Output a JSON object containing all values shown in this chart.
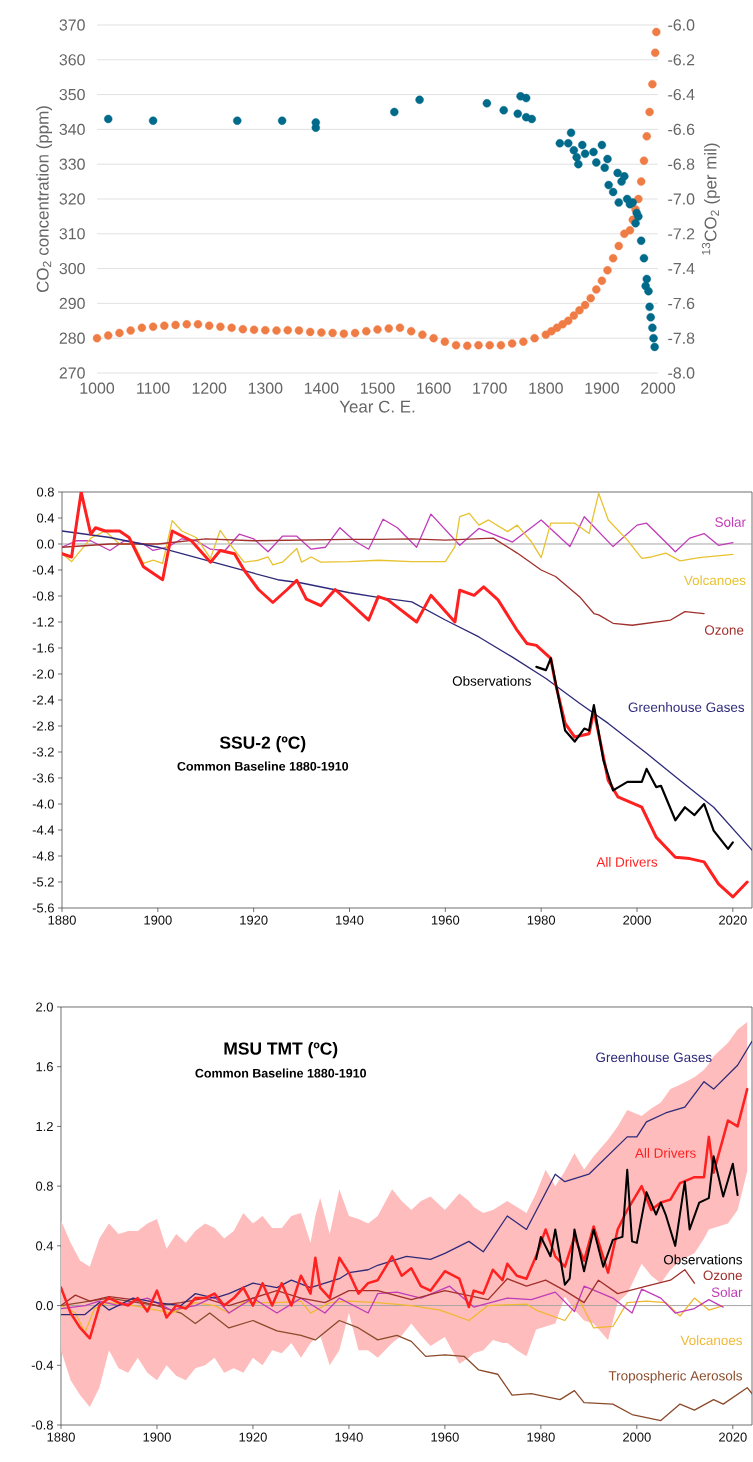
{
  "chart_data": [
    {
      "type": "scatter",
      "xlabel": "Year C. E.",
      "ylabel": "CO$_{2}$ concentration (ppm)",
      "y2label": "$^{13}$CO$_{2}$ (per mil)",
      "xlim": [
        1000,
        2000
      ],
      "xticks": [
        1000,
        1100,
        1200,
        1300,
        1400,
        1500,
        1600,
        1700,
        1800,
        1900,
        2000
      ],
      "ylim": [
        270,
        370
      ],
      "yticks": [
        270,
        280,
        290,
        300,
        310,
        320,
        330,
        340,
        350,
        360,
        370
      ],
      "y2lim": [
        -8,
        -6
      ],
      "y2ticks": [
        {
          "value": -8,
          "label": "-8.0"
        },
        -7.8,
        -7.6,
        -7.4,
        -7.2,
        {
          "value": -7,
          "label": "-7.0"
        },
        -6.8,
        -6.6,
        -6.4,
        -6.2,
        {
          "value": -6,
          "label": "-6.0"
        }
      ],
      "grid": "y",
      "marker": "circle",
      "series": [
        {
          "color": "#f07c45",
          "x": [
            1000,
            1020,
            1040,
            1060,
            1080,
            1100,
            1120,
            1140,
            1160,
            1180,
            1200,
            1220,
            1240,
            1260,
            1280,
            1300,
            1320,
            1340,
            1360,
            1380,
            1400,
            1420,
            1440,
            1460,
            1480,
            1500,
            1520,
            1540,
            1560,
            1580,
            1600,
            1620,
            1640,
            1660,
            1680,
            1700,
            1720,
            1740,
            1760,
            1780,
            1800,
            1810,
            1820,
            1830,
            1840,
            1850,
            1860,
            1870,
            1880,
            1890,
            1900,
            1910,
            1920,
            1930,
            1940,
            1950,
            1955,
            1960,
            1965,
            1970,
            1975,
            1980,
            1985,
            1990,
            1995,
            1997
          ],
          "values": [
            280,
            280.8,
            281.5,
            282.2,
            283,
            283.3,
            283.6,
            283.8,
            284,
            284,
            283.6,
            283.3,
            283,
            282.6,
            282.4,
            282.3,
            282.2,
            282.3,
            282.2,
            281.8,
            281.6,
            281.5,
            281.3,
            281.5,
            282,
            282.5,
            282.8,
            283,
            282,
            281,
            280,
            279,
            278,
            277.8,
            278,
            278,
            278,
            278.5,
            279,
            280,
            281,
            282,
            283,
            284,
            285,
            286.5,
            288,
            289.5,
            291.5,
            294,
            296.5,
            299.5,
            303,
            306.5,
            310,
            311,
            314,
            317,
            320,
            325,
            331,
            338,
            345,
            353,
            362,
            368
          ]
        },
        {
          "color": "#006a8a",
          "axis": "y2",
          "x": [
            1020,
            1100,
            1250,
            1330,
            1390,
            1390,
            1530,
            1575,
            1695,
            1725,
            1750,
            1755,
            1765,
            1765,
            1775,
            1825,
            1840,
            1845,
            1850,
            1855,
            1858,
            1865,
            1870,
            1885,
            1890,
            1900,
            1905,
            1910,
            1912,
            1920,
            1928,
            1930,
            1935,
            1940,
            1945,
            1950,
            1955,
            1960,
            1962,
            1965,
            1970,
            1975,
            1978,
            1980,
            1983,
            1985,
            1987,
            1990,
            1992,
            1994
          ],
          "values": [
            -6.54,
            -6.55,
            -6.55,
            -6.55,
            -6.56,
            -6.59,
            -6.5,
            -6.43,
            -6.45,
            -6.49,
            -6.51,
            -6.41,
            -6.42,
            -6.53,
            -6.54,
            -6.68,
            -6.68,
            -6.62,
            -6.72,
            -6.76,
            -6.8,
            -6.69,
            -6.74,
            -6.73,
            -6.79,
            -6.69,
            -6.82,
            -6.77,
            -6.92,
            -6.96,
            -6.85,
            -7.02,
            -6.9,
            -6.87,
            -7.0,
            -7.03,
            -7.02,
            -7.14,
            -7.08,
            -7.1,
            -7.24,
            -7.34,
            -7.5,
            -7.46,
            -7.53,
            -7.62,
            -7.68,
            -7.74,
            -7.8,
            -7.85
          ]
        }
      ]
    },
    {
      "type": "line",
      "title": "SSU-2 (ºC)",
      "subtitle": "Common Baseline 1880-1910",
      "xlim": [
        1880,
        2024
      ],
      "xticks": [
        1880,
        1900,
        1920,
        1940,
        1960,
        1980,
        2000,
        2020
      ],
      "ylim": [
        -5.6,
        0.8
      ],
      "yticks": [
        0.8,
        0.4,
        {
          "value": 0,
          "label": "0.0"
        },
        -0.4,
        -0.8,
        -1.2,
        -1.6,
        {
          "value": -2,
          "label": "-2.0"
        },
        -2.4,
        -2.8,
        -3.2,
        -3.6,
        {
          "value": -4,
          "label": "-4.0"
        },
        -4.4,
        -4.8,
        -5.2,
        -5.6
      ],
      "ref_lines": [
        {
          "axis": "y",
          "value": 0,
          "color": "#a6a6a6"
        }
      ],
      "series": [
        {
          "name": "Solar",
          "color": "#c03cb8",
          "x": [
            1880,
            1883,
            1886,
            1890,
            1893,
            1897,
            1899,
            1902,
            1905,
            1908,
            1911,
            1914,
            1917,
            1920,
            1923,
            1926,
            1929,
            1932,
            1935,
            1938,
            1941,
            1944,
            1947,
            1950,
            1954,
            1957,
            1963,
            1967,
            1974,
            1980,
            1986,
            1989,
            1995,
            2000,
            2002,
            2008,
            2011,
            2014,
            2017,
            2020
          ],
          "values": [
            -0.05,
            0.05,
            0.05,
            -0.1,
            0.05,
            0.0,
            -0.1,
            -0.05,
            0.08,
            0.05,
            -0.08,
            -0.1,
            0.15,
            0.08,
            -0.12,
            0.12,
            0.12,
            -0.08,
            -0.05,
            0.25,
            0.05,
            -0.08,
            0.38,
            0.25,
            -0.05,
            0.46,
            -0.02,
            0.24,
            0.03,
            0.37,
            -0.04,
            0.42,
            -0.04,
            0.29,
            0.32,
            -0.12,
            0.09,
            0.16,
            -0.02,
            0.02
          ]
        },
        {
          "name": "Volcanoes",
          "color": "#e8c230",
          "x": [
            1880,
            1882,
            1886,
            1889,
            1892,
            1895,
            1897,
            1899,
            1901,
            1903,
            1905,
            1908,
            1911,
            1913,
            1915,
            1918,
            1921,
            1923,
            1924,
            1926,
            1929,
            1930,
            1932,
            1934,
            1940,
            1946,
            1953,
            1960,
            1962,
            1963,
            1965,
            1967,
            1969,
            1973,
            1975,
            1978,
            1980,
            1982,
            1987,
            1990,
            1992,
            1994,
            1998,
            2001,
            2003,
            2006,
            2009,
            2013,
            2020
          ],
          "values": [
            -0.15,
            -0.27,
            0.09,
            0.2,
            0.0,
            0.0,
            -0.3,
            -0.25,
            -0.3,
            0.36,
            0.2,
            0.1,
            -0.22,
            0.21,
            0.0,
            -0.28,
            -0.25,
            -0.2,
            -0.32,
            -0.28,
            -0.07,
            -0.28,
            -0.2,
            -0.28,
            -0.27,
            -0.25,
            -0.27,
            -0.27,
            -0.04,
            0.42,
            0.47,
            0.29,
            0.37,
            0.19,
            0.29,
            0.03,
            -0.21,
            0.32,
            0.32,
            0.16,
            0.78,
            0.37,
            0.06,
            -0.22,
            -0.2,
            -0.14,
            -0.26,
            -0.21,
            -0.16
          ]
        },
        {
          "name": "Ozone",
          "color": "#a0302c",
          "x": [
            1880,
            1890,
            1900,
            1910,
            1920,
            1930,
            1940,
            1946,
            1953,
            1960,
            1970,
            1975,
            1980,
            1983,
            1988,
            1991,
            1992,
            1995,
            1999,
            2003,
            2007,
            2010,
            2014
          ],
          "values": [
            -0.05,
            0.0,
            0.0,
            0.08,
            0.05,
            0.06,
            0.07,
            0.07,
            0.08,
            0.06,
            0.09,
            -0.14,
            -0.4,
            -0.5,
            -0.81,
            -1.07,
            -1.09,
            -1.22,
            -1.25,
            -1.21,
            -1.17,
            -1.04,
            -1.07
          ]
        },
        {
          "name": "Greenhouse Gases",
          "color": "#2e2a7a",
          "x": [
            1880,
            1890,
            1900,
            1910,
            1920,
            1925,
            1930,
            1940,
            1946,
            1953,
            1960,
            1967,
            1974,
            1981,
            1988,
            1994,
            2002,
            2009,
            2016,
            2024
          ],
          "values": [
            0.2,
            0.1,
            -0.05,
            -0.25,
            -0.45,
            -0.55,
            -0.6,
            -0.75,
            -0.82,
            -0.89,
            -1.17,
            -1.43,
            -1.74,
            -2.07,
            -2.45,
            -2.76,
            -3.22,
            -3.64,
            -4.05,
            -4.71
          ]
        },
        {
          "name": "All Drivers",
          "color": "#ff2020",
          "x": [
            1880,
            1882,
            1884,
            1886,
            1887,
            1889,
            1892,
            1894,
            1897,
            1899,
            1901,
            1903,
            1907,
            1911,
            1913,
            1916,
            1918,
            1921,
            1924,
            1927,
            1929,
            1931,
            1934,
            1937,
            1940,
            1944,
            1946,
            1948,
            1954,
            1957,
            1962,
            1963,
            1966,
            1968,
            1971,
            1975,
            1977,
            1979,
            1982,
            1983,
            1985,
            1987,
            1990,
            1991,
            1994,
            1996,
            2001,
            2004,
            2008,
            2011,
            2014,
            2017,
            2020,
            2023
          ],
          "values": [
            -0.15,
            -0.2,
            0.8,
            0.15,
            0.25,
            0.2,
            0.2,
            0.1,
            -0.35,
            -0.45,
            -0.55,
            0.2,
            0.05,
            -0.28,
            -0.1,
            -0.15,
            -0.4,
            -0.7,
            -0.9,
            -0.7,
            -0.56,
            -0.85,
            -0.95,
            -0.7,
            -0.9,
            -1.17,
            -0.81,
            -0.86,
            -1.2,
            -0.79,
            -1.2,
            -0.71,
            -0.79,
            -0.66,
            -0.86,
            -1.33,
            -1.53,
            -1.56,
            -1.76,
            -2.15,
            -2.76,
            -2.97,
            -2.92,
            -2.56,
            -3.64,
            -3.89,
            -4.05,
            -4.51,
            -4.82,
            -4.84,
            -4.89,
            -5.23,
            -5.43,
            -5.2
          ]
        },
        {
          "name": "Observations",
          "color": "#000000",
          "x": [
            1979,
            1981,
            1982,
            1985,
            1987,
            1989,
            1990,
            1991,
            1993,
            1995,
            1998,
            2001,
            2002,
            2004,
            2005,
            2008,
            2010,
            2012,
            2014,
            2016,
            2019,
            2020
          ],
          "values": [
            -1.89,
            -1.94,
            -1.76,
            -2.87,
            -3.04,
            -2.84,
            -2.87,
            -2.48,
            -3.33,
            -3.79,
            -3.66,
            -3.66,
            -3.46,
            -3.74,
            -3.72,
            -4.25,
            -4.05,
            -4.17,
            -4.0,
            -4.41,
            -4.69,
            -4.59
          ]
        }
      ]
    },
    {
      "type": "line",
      "title": "MSU TMT (ºC)",
      "subtitle": "Common Baseline 1880-1910",
      "xlim": [
        1880,
        2024
      ],
      "xticks": [
        1880,
        1900,
        1920,
        1940,
        1960,
        1980,
        2000,
        2020
      ],
      "ylim": [
        -0.8,
        2.0
      ],
      "yticks": [
        -0.8,
        -0.4,
        {
          "value": 0,
          "label": "0.0"
        },
        0.4,
        0.8,
        1.2,
        1.6,
        {
          "value": 2,
          "label": "2.0"
        }
      ],
      "ref_lines": [
        {
          "axis": "y",
          "value": 0,
          "color": "#a6a6a6"
        }
      ],
      "series": [
        {
          "name": "Tropospheric Aerosols",
          "color": "#8b4a2a",
          "x": [
            1880,
            1890,
            1900,
            1905,
            1908,
            1911,
            1915,
            1920,
            1925,
            1930,
            1933,
            1938,
            1942,
            1946,
            1950,
            1953,
            1956,
            1960,
            1964,
            1967,
            1971,
            1974,
            1978,
            1984,
            1987,
            1989,
            1995,
            1999,
            2005,
            2009,
            2012,
            2016,
            2018,
            2023,
            2024
          ],
          "values": [
            0.0,
            0.05,
            0.0,
            -0.05,
            -0.12,
            -0.05,
            -0.15,
            -0.1,
            -0.17,
            -0.2,
            -0.23,
            -0.1,
            -0.15,
            -0.23,
            -0.2,
            -0.24,
            -0.34,
            -0.33,
            -0.34,
            -0.43,
            -0.46,
            -0.6,
            -0.59,
            -0.63,
            -0.57,
            -0.65,
            -0.66,
            -0.73,
            -0.77,
            -0.66,
            -0.7,
            -0.63,
            -0.66,
            -0.55,
            -0.59
          ]
        },
        {
          "name": "Volcanoes",
          "color": "#f0b830",
          "x": [
            1880,
            1883,
            1885,
            1887,
            1890,
            1895,
            1900,
            1903,
            1908,
            1912,
            1915,
            1918,
            1925,
            1930,
            1932,
            1936,
            1940,
            1946,
            1953,
            1959,
            1965,
            1969,
            1977,
            1979,
            1985,
            1988,
            1991,
            1995,
            1998,
            2002,
            2006,
            2009,
            2012,
            2015,
            2018
          ],
          "values": [
            0.0,
            -0.05,
            -0.18,
            -0.02,
            0.02,
            0.0,
            -0.03,
            -0.05,
            0.02,
            0.0,
            -0.05,
            0.02,
            0.02,
            0.03,
            -0.05,
            0.02,
            0.03,
            0.02,
            0.0,
            -0.03,
            -0.1,
            0.0,
            0.01,
            -0.03,
            -0.1,
            0.04,
            -0.15,
            -0.14,
            0.02,
            0.03,
            0.02,
            -0.07,
            0.05,
            -0.03,
            0.0
          ]
        },
        {
          "name": "Solar",
          "color": "#c03cb8",
          "x": [
            1880,
            1885,
            1888,
            1892,
            1898,
            1903,
            1908,
            1912,
            1915,
            1920,
            1925,
            1930,
            1935,
            1938,
            1944,
            1946,
            1950,
            1955,
            1961,
            1966,
            1973,
            1978,
            1983,
            1987,
            1989,
            1995,
            1999,
            2001,
            2005,
            2008,
            2012,
            2015,
            2018
          ],
          "values": [
            -0.02,
            0.0,
            0.03,
            0.0,
            0.05,
            -0.03,
            0.0,
            0.06,
            -0.05,
            0.05,
            -0.05,
            0.05,
            -0.05,
            0.05,
            -0.05,
            0.08,
            0.09,
            0.05,
            0.13,
            -0.01,
            0.05,
            0.04,
            0.09,
            -0.04,
            0.13,
            0.05,
            -0.05,
            0.11,
            0.05,
            -0.05,
            -0.02,
            0.04,
            -0.01
          ]
        },
        {
          "name": "Ozone",
          "color": "#a0302c",
          "x": [
            1880,
            1883,
            1886,
            1890,
            1895,
            1900,
            1905,
            1910,
            1915,
            1920,
            1925,
            1930,
            1935,
            1940,
            1946,
            1953,
            1960,
            1969,
            1973,
            1977,
            1981,
            1985,
            1989,
            1992,
            1996,
            2002,
            2007,
            2010,
            2012
          ],
          "values": [
            0.0,
            0.07,
            0.03,
            0.06,
            0.04,
            0.0,
            0.02,
            0.05,
            0.0,
            0.05,
            0.1,
            0.05,
            0.02,
            0.1,
            0.1,
            0.04,
            0.1,
            0.04,
            0.18,
            0.13,
            0.17,
            0.1,
            0.02,
            0.17,
            0.08,
            0.13,
            0.17,
            0.24,
            0.15
          ]
        },
        {
          "name": "Greenhouse Gases",
          "color": "#2e2a7a",
          "x": [
            1880,
            1885,
            1888,
            1890,
            1895,
            1900,
            1905,
            1908,
            1912,
            1915,
            1920,
            1925,
            1928,
            1932,
            1935,
            1938,
            1940,
            1944,
            1946,
            1952,
            1957,
            1960,
            1965,
            1968,
            1973,
            1977,
            1983,
            1985,
            1990,
            1998,
            2000,
            2002,
            2006,
            2010,
            2014,
            2016,
            2021,
            2024
          ],
          "values": [
            -0.06,
            -0.06,
            0.02,
            -0.03,
            0.05,
            0.02,
            0.0,
            0.08,
            0.05,
            0.08,
            0.15,
            0.12,
            0.17,
            0.12,
            0.15,
            0.18,
            0.22,
            0.24,
            0.27,
            0.33,
            0.31,
            0.35,
            0.43,
            0.36,
            0.6,
            0.51,
            0.88,
            0.83,
            0.88,
            1.13,
            1.13,
            1.23,
            1.29,
            1.33,
            1.5,
            1.45,
            1.61,
            1.77
          ]
        },
        {
          "name": "All Drivers",
          "color": "#ff2020",
          "x": [
            1880,
            1882,
            1884,
            1886,
            1888,
            1890,
            1892,
            1894,
            1896,
            1898,
            1900,
            1902,
            1904,
            1906,
            1908,
            1910,
            1912,
            1914,
            1916,
            1918,
            1920,
            1922,
            1924,
            1926,
            1928,
            1930,
            1932,
            1933,
            1934,
            1936,
            1938,
            1940,
            1942,
            1944,
            1946,
            1949,
            1951,
            1953,
            1955,
            1957,
            1960,
            1963,
            1965,
            1966,
            1968,
            1970,
            1972,
            1973,
            1975,
            1977,
            1979,
            1981,
            1983,
            1985,
            1987,
            1989,
            1991,
            1994,
            1996,
            1998,
            2001,
            2003,
            2005,
            2007,
            2009,
            2012,
            2014,
            2015,
            2016,
            2019,
            2021,
            2023
          ],
          "values": [
            0.12,
            -0.05,
            -0.15,
            -0.22,
            0.0,
            0.05,
            0.02,
            0.0,
            0.05,
            -0.04,
            0.1,
            -0.08,
            0.0,
            -0.02,
            0.05,
            0.05,
            0.08,
            0.0,
            0.05,
            0.12,
            0.0,
            0.15,
            0.0,
            0.15,
            0.0,
            0.2,
            0.08,
            0.32,
            0.12,
            0.05,
            0.32,
            0.22,
            0.08,
            0.15,
            0.17,
            0.33,
            0.2,
            0.25,
            0.13,
            0.1,
            0.23,
            0.18,
            -0.01,
            0.1,
            0.08,
            0.24,
            0.17,
            0.28,
            0.2,
            0.18,
            0.33,
            0.51,
            0.33,
            0.26,
            0.46,
            0.3,
            0.53,
            0.22,
            0.51,
            0.64,
            0.8,
            0.64,
            0.69,
            0.71,
            0.82,
            0.86,
            0.86,
            1.13,
            0.89,
            1.24,
            1.2,
            1.45
          ],
          "lower": [
            -0.3,
            -0.5,
            -0.6,
            -0.68,
            -0.55,
            -0.3,
            -0.42,
            -0.45,
            -0.35,
            -0.45,
            -0.5,
            -0.4,
            -0.47,
            -0.5,
            -0.42,
            -0.4,
            -0.35,
            -0.45,
            -0.42,
            -0.45,
            -0.35,
            -0.4,
            -0.3,
            -0.32,
            -0.25,
            -0.35,
            -0.25,
            -0.22,
            -0.2,
            -0.4,
            -0.3,
            -0.05,
            -0.3,
            -0.3,
            -0.35,
            -0.25,
            -0.2,
            -0.12,
            -0.2,
            -0.27,
            -0.21,
            -0.39,
            -0.35,
            -0.32,
            -0.3,
            -0.23,
            -0.25,
            -0.25,
            -0.3,
            -0.34,
            -0.16,
            -0.14,
            -0.12,
            0.06,
            -0.03,
            -0.1,
            -0.12,
            -0.23,
            0.02,
            0.08,
            0.28,
            0.2,
            0.15,
            0.24,
            0.3,
            0.35,
            0.45,
            0.51,
            0.52,
            0.55,
            0.64,
            0.9
          ],
          "upper": [
            0.57,
            0.42,
            0.3,
            0.26,
            0.45,
            0.55,
            0.48,
            0.5,
            0.5,
            0.55,
            0.58,
            0.38,
            0.48,
            0.42,
            0.5,
            0.55,
            0.52,
            0.45,
            0.5,
            0.62,
            0.55,
            0.6,
            0.52,
            0.52,
            0.6,
            0.62,
            0.42,
            0.6,
            0.72,
            0.48,
            0.78,
            0.6,
            0.58,
            0.55,
            0.6,
            0.78,
            0.7,
            0.64,
            0.7,
            0.73,
            0.64,
            0.75,
            0.7,
            0.66,
            0.62,
            0.64,
            0.68,
            0.7,
            0.66,
            0.62,
            0.75,
            0.91,
            0.8,
            0.9,
            1.02,
            0.91,
            1.0,
            1.11,
            1.2,
            1.31,
            1.27,
            1.32,
            1.36,
            1.45,
            1.48,
            1.53,
            1.58,
            1.62,
            1.67,
            1.76,
            1.85,
            1.9
          ]
        },
        {
          "name": "Observations",
          "color": "#000000",
          "x": [
            1979,
            1980,
            1982,
            1983,
            1985,
            1986,
            1987,
            1989,
            1991,
            1993,
            1995,
            1997,
            1998,
            1999,
            2000,
            2002,
            2004,
            2005,
            2006,
            2008,
            2010,
            2011,
            2013,
            2015,
            2016,
            2018,
            2020,
            2021
          ],
          "values": [
            0.31,
            0.46,
            0.33,
            0.51,
            0.14,
            0.18,
            0.51,
            0.23,
            0.51,
            0.26,
            0.44,
            0.46,
            0.91,
            0.43,
            0.42,
            0.76,
            0.61,
            0.69,
            0.61,
            0.4,
            0.83,
            0.51,
            0.69,
            0.72,
            1.0,
            0.73,
            0.95,
            0.74
          ]
        }
      ]
    }
  ]
}
